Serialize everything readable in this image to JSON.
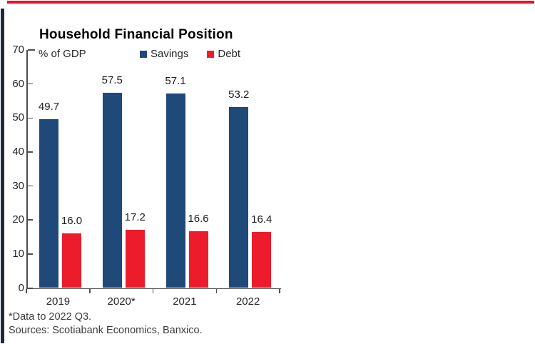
{
  "page": {
    "accent_top_color": "#e8112d",
    "accent_left_color": "#1e2a44",
    "background": "#ffffff"
  },
  "chart_data": {
    "type": "bar",
    "title": "Household Financial Position",
    "unit_label": "% of GDP",
    "categories": [
      "2019",
      "2020*",
      "2021",
      "2022"
    ],
    "series": [
      {
        "name": "Savings",
        "color": "#1f4978",
        "values": [
          49.7,
          57.5,
          57.1,
          53.2
        ]
      },
      {
        "name": "Debt",
        "color": "#ed1c2d",
        "values": [
          16.0,
          17.2,
          16.6,
          16.4
        ]
      }
    ],
    "ylim": [
      0,
      70
    ],
    "yticks": [
      0,
      10,
      20,
      30,
      40,
      50,
      60,
      70
    ],
    "grid": false,
    "legend_position": "top",
    "value_labels": true,
    "tick_style": "inward",
    "axis_color": "#4d4d4d"
  },
  "footnotes": {
    "note": "*Data to 2022 Q3.",
    "sources": "Sources: Scotiabank Economics, Banxico."
  }
}
